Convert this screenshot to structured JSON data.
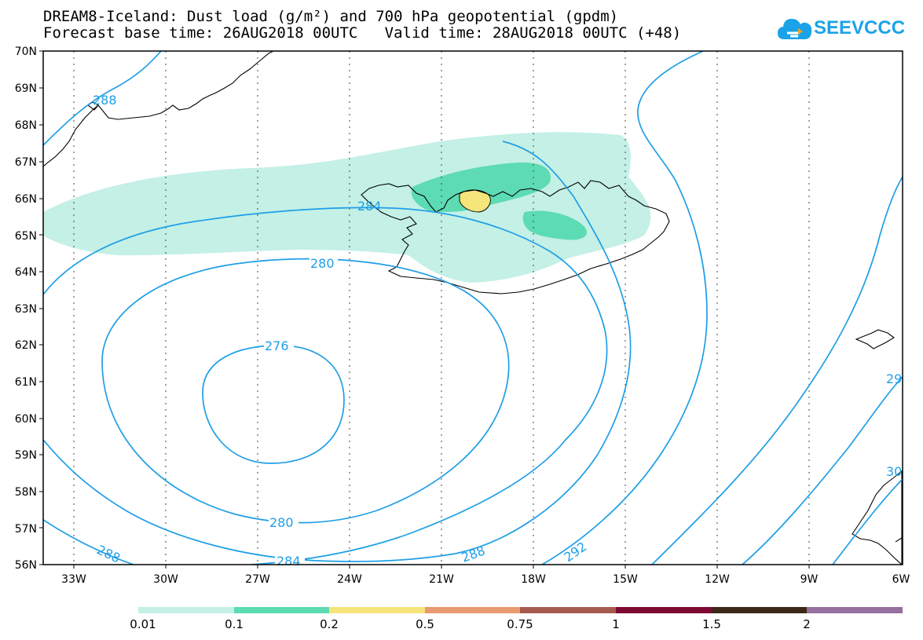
{
  "title_line1": "DREAM8-Iceland: Dust load (g/m²) and 700 hPa geopotential (gpdm)",
  "title_line2": "Forecast base time: 26AUG2018 00UTC   Valid time: 28AUG2018 00UTC (+48)",
  "logo": {
    "text": "SEEVCCC",
    "icon": "cloud-icon",
    "color": "#1aa3e8"
  },
  "map": {
    "lat_labels": [
      "70N",
      "69N",
      "68N",
      "67N",
      "66N",
      "65N",
      "64N",
      "63N",
      "62N",
      "61N",
      "60N",
      "59N",
      "58N",
      "57N",
      "56N"
    ],
    "lon_labels": [
      "33W",
      "30W",
      "27W",
      "24W",
      "21W",
      "18W",
      "15W",
      "12W",
      "9W",
      "6W"
    ],
    "lat_range": [
      56,
      70
    ],
    "lon_range": [
      -34.5,
      -6
    ],
    "grid": "dotted"
  },
  "contour_labels": [
    "288",
    "284",
    "280",
    "276",
    "280",
    "284",
    "288",
    "292",
    "29",
    "30",
    "288"
  ],
  "colorbar": {
    "labels": [
      "0.01",
      "0.1",
      "0.2",
      "0.5",
      "0.75",
      "1",
      "1.5",
      "2"
    ],
    "colors": [
      "#c4f0e6",
      "#5ddbb3",
      "#f5e57a",
      "#e89a70",
      "#a65a50",
      "#7d0a32",
      "#3d2818",
      "#96709e"
    ]
  }
}
